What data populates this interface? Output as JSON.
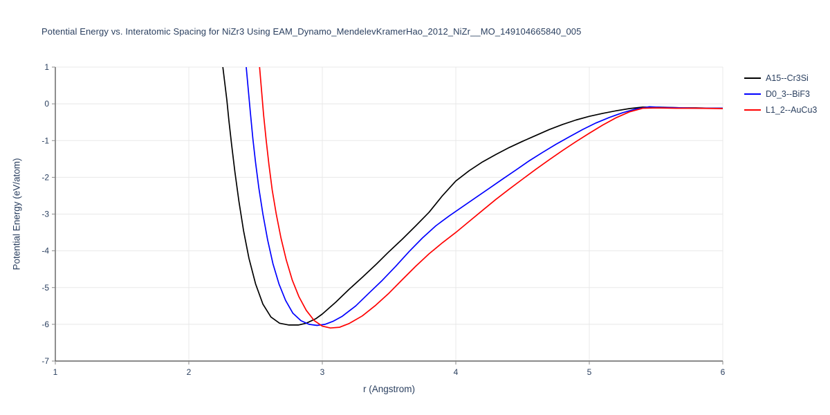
{
  "chart_data": {
    "type": "line",
    "title": "Potential Energy vs. Interatomic Spacing for NiZr3 Using EAM_Dynamo_MendelevKramerHao_2012_NiZr__MO_149104665840_005",
    "xlabel": "r (Angstrom)",
    "ylabel": "Potential Energy (eV/atom)",
    "xlim": [
      1,
      6
    ],
    "ylim": [
      -7,
      1
    ],
    "xticks": [
      1,
      2,
      3,
      4,
      5,
      6
    ],
    "yticks": [
      1,
      0,
      -1,
      -2,
      -3,
      -4,
      -5,
      -6,
      -7
    ],
    "grid": true,
    "legend_position": "outside-top-right",
    "colors": {
      "title_text": "#2a3f5f",
      "axis_text": "#2a3f5f",
      "grid": "#e8e8e8",
      "axis_line": "#444444",
      "tick": "#888888",
      "background": "#ffffff"
    },
    "series": [
      {
        "name": "A15--Cr3Si",
        "color": "#000000",
        "points": [
          [
            2.255,
            1.0
          ],
          [
            2.27,
            0.55
          ],
          [
            2.285,
            0.1
          ],
          [
            2.3,
            -0.45
          ],
          [
            2.32,
            -1.1
          ],
          [
            2.345,
            -1.85
          ],
          [
            2.375,
            -2.65
          ],
          [
            2.41,
            -3.45
          ],
          [
            2.45,
            -4.2
          ],
          [
            2.5,
            -4.9
          ],
          [
            2.555,
            -5.45
          ],
          [
            2.615,
            -5.8
          ],
          [
            2.68,
            -5.97
          ],
          [
            2.75,
            -6.02
          ],
          [
            2.82,
            -6.02
          ],
          [
            2.88,
            -5.97
          ],
          [
            2.95,
            -5.85
          ],
          [
            3.0,
            -5.72
          ],
          [
            3.1,
            -5.4
          ],
          [
            3.2,
            -5.05
          ],
          [
            3.3,
            -4.72
          ],
          [
            3.4,
            -4.38
          ],
          [
            3.5,
            -4.02
          ],
          [
            3.6,
            -3.68
          ],
          [
            3.7,
            -3.32
          ],
          [
            3.8,
            -2.95
          ],
          [
            3.9,
            -2.5
          ],
          [
            4.0,
            -2.1
          ],
          [
            4.1,
            -1.82
          ],
          [
            4.2,
            -1.58
          ],
          [
            4.3,
            -1.38
          ],
          [
            4.4,
            -1.19
          ],
          [
            4.5,
            -1.02
          ],
          [
            4.6,
            -0.86
          ],
          [
            4.7,
            -0.7
          ],
          [
            4.8,
            -0.56
          ],
          [
            4.9,
            -0.44
          ],
          [
            5.0,
            -0.34
          ],
          [
            5.1,
            -0.26
          ],
          [
            5.2,
            -0.19
          ],
          [
            5.3,
            -0.13
          ],
          [
            5.4,
            -0.09
          ],
          [
            5.5,
            -0.09
          ],
          [
            5.6,
            -0.1
          ],
          [
            5.7,
            -0.11
          ],
          [
            5.8,
            -0.11
          ],
          [
            5.9,
            -0.12
          ],
          [
            6.0,
            -0.12
          ]
        ]
      },
      {
        "name": "D0_3--BiF3",
        "color": "#0000ff",
        "points": [
          [
            2.43,
            1.0
          ],
          [
            2.445,
            0.4
          ],
          [
            2.46,
            -0.2
          ],
          [
            2.48,
            -0.95
          ],
          [
            2.5,
            -1.6
          ],
          [
            2.525,
            -2.3
          ],
          [
            2.555,
            -3.0
          ],
          [
            2.59,
            -3.7
          ],
          [
            2.63,
            -4.35
          ],
          [
            2.675,
            -4.9
          ],
          [
            2.725,
            -5.35
          ],
          [
            2.78,
            -5.7
          ],
          [
            2.84,
            -5.9
          ],
          [
            2.9,
            -6.0
          ],
          [
            2.96,
            -6.03
          ],
          [
            3.02,
            -6.0
          ],
          [
            3.08,
            -5.92
          ],
          [
            3.15,
            -5.78
          ],
          [
            3.25,
            -5.5
          ],
          [
            3.35,
            -5.15
          ],
          [
            3.45,
            -4.8
          ],
          [
            3.55,
            -4.42
          ],
          [
            3.65,
            -4.02
          ],
          [
            3.75,
            -3.65
          ],
          [
            3.85,
            -3.32
          ],
          [
            3.95,
            -3.05
          ],
          [
            4.05,
            -2.8
          ],
          [
            4.15,
            -2.55
          ],
          [
            4.25,
            -2.3
          ],
          [
            4.35,
            -2.05
          ],
          [
            4.45,
            -1.8
          ],
          [
            4.55,
            -1.55
          ],
          [
            4.65,
            -1.32
          ],
          [
            4.75,
            -1.1
          ],
          [
            4.85,
            -0.9
          ],
          [
            4.95,
            -0.7
          ],
          [
            5.05,
            -0.52
          ],
          [
            5.15,
            -0.37
          ],
          [
            5.25,
            -0.24
          ],
          [
            5.35,
            -0.14
          ],
          [
            5.45,
            -0.08
          ],
          [
            5.55,
            -0.1
          ],
          [
            5.7,
            -0.11
          ],
          [
            5.85,
            -0.12
          ],
          [
            6.0,
            -0.12
          ]
        ]
      },
      {
        "name": "L1_2--AuCu3",
        "color": "#ff0000",
        "points": [
          [
            2.53,
            1.0
          ],
          [
            2.545,
            0.35
          ],
          [
            2.56,
            -0.3
          ],
          [
            2.58,
            -1.0
          ],
          [
            2.6,
            -1.65
          ],
          [
            2.625,
            -2.35
          ],
          [
            2.655,
            -3.0
          ],
          [
            2.69,
            -3.65
          ],
          [
            2.73,
            -4.25
          ],
          [
            2.775,
            -4.8
          ],
          [
            2.825,
            -5.25
          ],
          [
            2.88,
            -5.62
          ],
          [
            2.94,
            -5.9
          ],
          [
            3.0,
            -6.05
          ],
          [
            3.06,
            -6.1
          ],
          [
            3.13,
            -6.08
          ],
          [
            3.2,
            -5.98
          ],
          [
            3.3,
            -5.77
          ],
          [
            3.4,
            -5.48
          ],
          [
            3.5,
            -5.15
          ],
          [
            3.6,
            -4.78
          ],
          [
            3.7,
            -4.42
          ],
          [
            3.8,
            -4.08
          ],
          [
            3.9,
            -3.78
          ],
          [
            4.0,
            -3.5
          ],
          [
            4.1,
            -3.2
          ],
          [
            4.2,
            -2.9
          ],
          [
            4.3,
            -2.6
          ],
          [
            4.4,
            -2.32
          ],
          [
            4.5,
            -2.05
          ],
          [
            4.6,
            -1.78
          ],
          [
            4.7,
            -1.52
          ],
          [
            4.8,
            -1.27
          ],
          [
            4.9,
            -1.03
          ],
          [
            5.0,
            -0.8
          ],
          [
            5.1,
            -0.58
          ],
          [
            5.2,
            -0.38
          ],
          [
            5.3,
            -0.22
          ],
          [
            5.4,
            -0.12
          ],
          [
            5.5,
            -0.11
          ],
          [
            5.65,
            -0.12
          ],
          [
            5.8,
            -0.12
          ],
          [
            6.0,
            -0.13
          ]
        ]
      }
    ]
  }
}
